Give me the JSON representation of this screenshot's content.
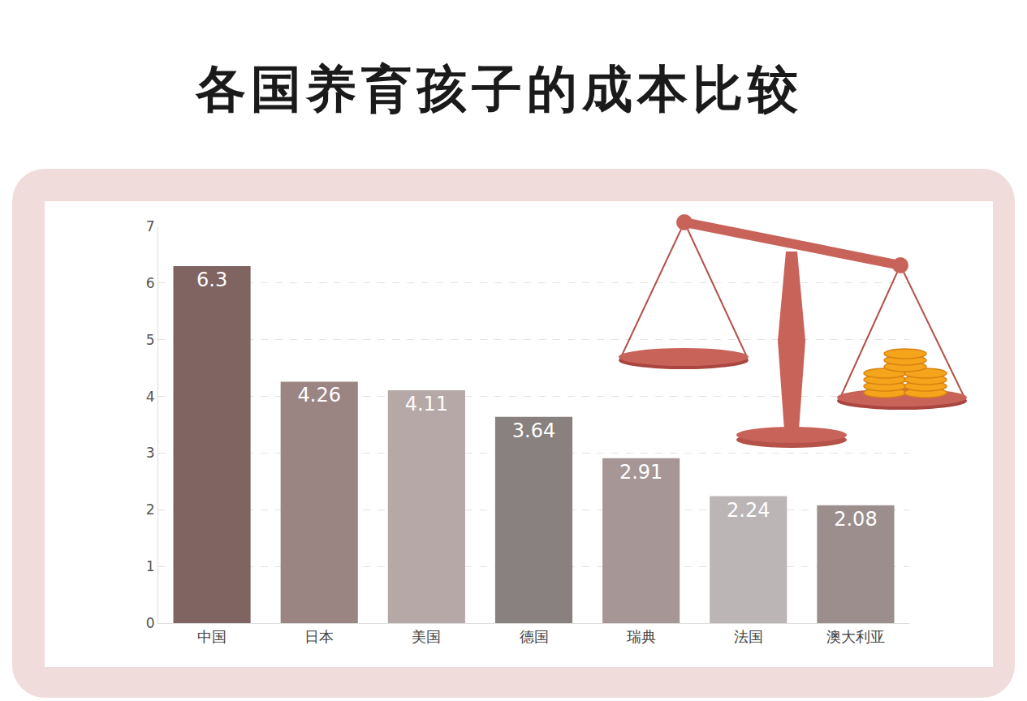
{
  "chart_data": {
    "type": "bar",
    "title": "各国养育孩子的成本比较",
    "categories": [
      "中国",
      "日本",
      "美国",
      "德国",
      "瑞典",
      "法国",
      "澳大利亚"
    ],
    "values": [
      6.3,
      4.26,
      4.11,
      3.64,
      2.91,
      2.24,
      2.08
    ],
    "colors": [
      "#7f6462",
      "#9a8583",
      "#b5a8a7",
      "#88817f",
      "#a69796",
      "#bbb6b5",
      "#9c8e8d"
    ],
    "ylim": [
      0,
      7
    ],
    "yticks": [
      0,
      1,
      2,
      3,
      4,
      5,
      6,
      7
    ],
    "grid": true,
    "data_labels": true
  }
}
